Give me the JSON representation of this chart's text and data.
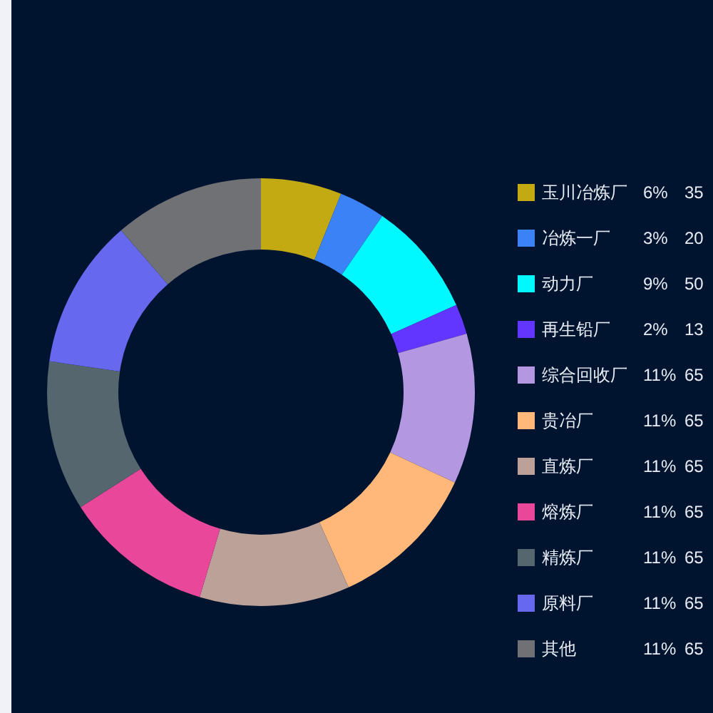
{
  "chart_data": {
    "type": "donut",
    "categories": [
      "玉川冶炼厂",
      "冶炼一厂",
      "动力厂",
      "再生铅厂",
      "综合回收厂",
      "贵冶厂",
      "直炼厂",
      "熔炼厂",
      "精炼厂",
      "原料厂",
      "其他"
    ],
    "values": [
      35,
      20,
      50,
      13,
      65,
      65,
      65,
      65,
      65,
      65,
      65
    ],
    "colors": [
      "#c4aa12",
      "#3b82f6",
      "#00f9ff",
      "#6236ff",
      "#b397e0",
      "#ffb87a",
      "#bba197",
      "#e9489a",
      "#56666e",
      "#6668ee",
      "#707174"
    ],
    "annotations": [
      "6%",
      "3%",
      "9%",
      "2%",
      "11%",
      "11%",
      "11%",
      "11%",
      "11%",
      "11%",
      "11%"
    ],
    "data_labels": true,
    "legend": "right"
  }
}
